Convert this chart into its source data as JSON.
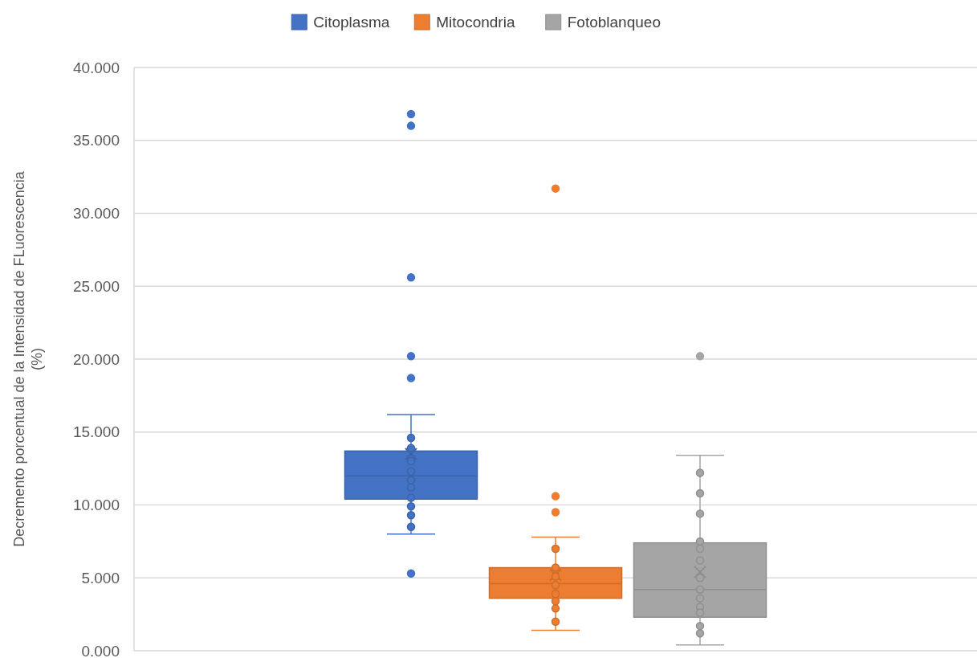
{
  "chart_data": {
    "type": "box",
    "ylabel": "Decremento porcentual de la Intensidad de FLuorescencia (%)",
    "categories": [
      null
    ],
    "ylim": [
      0,
      40
    ],
    "yticks": [
      {
        "value": 0,
        "label": "0.000"
      },
      {
        "value": 5,
        "label": "5.000"
      },
      {
        "value": 10,
        "label": "10.000"
      },
      {
        "value": 15,
        "label": "15.000"
      },
      {
        "value": 20,
        "label": "20.000"
      },
      {
        "value": 25,
        "label": "25.000"
      },
      {
        "value": 30,
        "label": "30.000"
      },
      {
        "value": 35,
        "label": "35.000"
      },
      {
        "value": 40,
        "label": "40.000"
      }
    ],
    "grid": "y",
    "legend": "top",
    "marker": "circle",
    "series": [
      {
        "name": "Citoplasma",
        "color": "#4472c4",
        "boxes": [
          {
            "low": 8.0,
            "q1": 10.4,
            "median": 12.0,
            "q3": 13.7,
            "high": 16.2,
            "mean": 13.5,
            "outliers": [
              36.8,
              36.0,
              25.6,
              20.2,
              18.7,
              5.3
            ]
          }
        ]
      },
      {
        "name": "Mitocondria",
        "color": "#ed7d31",
        "boxes": [
          {
            "low": 1.4,
            "q1": 3.6,
            "median": 4.6,
            "q3": 5.7,
            "high": 7.8,
            "mean": 5.2,
            "outliers": [
              31.7,
              10.6,
              9.5
            ]
          }
        ]
      },
      {
        "name": "Fotoblanqueo",
        "color": "#a5a5a5",
        "boxes": [
          {
            "low": 0.4,
            "q1": 2.3,
            "median": 4.2,
            "q3": 7.4,
            "high": 13.4,
            "mean": 5.4,
            "outliers": [
              20.2
            ]
          }
        ]
      },
      {
        "type": "scatter",
        "color": "#4472c4",
        "x": [
          null,
          null,
          null,
          null,
          null,
          null,
          null,
          null,
          null,
          null
        ],
        "values": [
          14.6,
          13.9,
          13.0,
          12.3,
          11.7,
          11.2,
          10.5,
          9.9,
          9.3,
          8.5
        ]
      },
      {
        "type": "scatter",
        "color": "#ed7d31",
        "x": [
          null,
          null,
          null,
          null,
          null,
          null,
          null,
          null
        ],
        "values": [
          7.0,
          5.7,
          5.1,
          4.5,
          3.9,
          3.4,
          2.9,
          2.0
        ]
      },
      {
        "type": "scatter",
        "color": "#a5a5a5",
        "x": [
          null,
          null,
          null,
          null,
          null,
          null,
          null,
          null,
          null,
          null,
          null,
          null,
          null
        ],
        "values": [
          12.2,
          10.8,
          9.4,
          7.5,
          7.0,
          6.2,
          5.0,
          4.2,
          3.6,
          3.0,
          2.6,
          1.7,
          1.2
        ]
      }
    ]
  }
}
